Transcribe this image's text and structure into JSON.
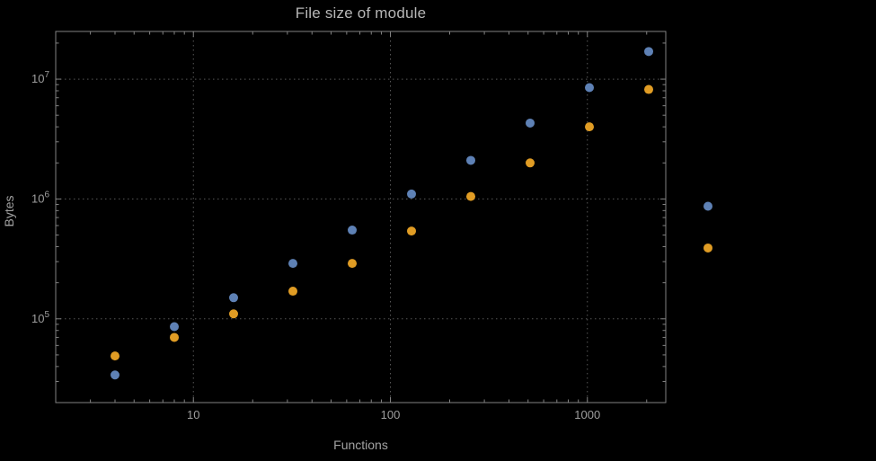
{
  "title": "File size of module",
  "chart_data": {
    "type": "scatter",
    "title": "File size of module",
    "xlabel": "Functions",
    "ylabel": "Bytes",
    "x_scale": "log",
    "y_scale": "log",
    "xlim": [
      2,
      2500
    ],
    "ylim": [
      20000,
      25000000
    ],
    "grid": true,
    "grid_style": "dotted",
    "legend": "none",
    "clip_points": false,
    "x": [
      4,
      8,
      16,
      32,
      64,
      128,
      256,
      512,
      1024,
      2048,
      4096
    ],
    "series": [
      {
        "name": "series-1-blue",
        "color": "#5e81b5",
        "values": [
          34000,
          86000,
          150000,
          290000,
          550000,
          1100000,
          2100000,
          4300000,
          8500000,
          17000000,
          870000
        ]
      },
      {
        "name": "series-2-orange",
        "color": "#e09c24",
        "values": [
          49000,
          70000,
          110000,
          170000,
          290000,
          540000,
          1050000,
          2000000,
          4000000,
          8200000,
          390000
        ]
      }
    ],
    "x_ticks": [
      {
        "value": 10,
        "label": "10"
      },
      {
        "value": 100,
        "label": "100"
      },
      {
        "value": 1000,
        "label": "1000"
      }
    ],
    "y_ticks": [
      {
        "value": 100000,
        "label": "10^5",
        "base": "10",
        "exp": "5"
      },
      {
        "value": 1000000,
        "label": "10^6",
        "base": "10",
        "exp": "6"
      },
      {
        "value": 10000000,
        "label": "10^7",
        "base": "10",
        "exp": "7"
      }
    ]
  },
  "colors": {
    "background": "#000000",
    "frame": "#828282",
    "grid": "#575757",
    "text": "#9e9e9e",
    "title_text": "#b6b6b6",
    "series_blue": "#5e81b5",
    "series_orange": "#e09c24"
  }
}
